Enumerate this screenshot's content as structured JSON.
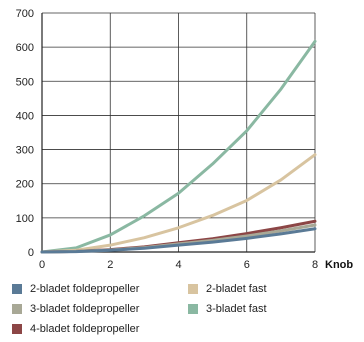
{
  "chart_data": {
    "type": "line",
    "title": "",
    "xlabel": "Knob",
    "ylabel": "",
    "xlim": [
      0,
      8
    ],
    "ylim": [
      0,
      700
    ],
    "x_ticks": [
      "0",
      "2",
      "4",
      "6",
      "8"
    ],
    "y_ticks": [
      "0",
      "100",
      "200",
      "300",
      "400",
      "500",
      "600",
      "700"
    ],
    "grid": true,
    "legend_position": "bottom",
    "x": [
      0,
      1,
      2,
      3,
      4,
      5,
      6,
      7,
      8
    ],
    "series": [
      {
        "name": "2-bladet foldepropeller",
        "color": "#5a7a96",
        "values": [
          0,
          1,
          5,
          11,
          20,
          29,
          40,
          53,
          68
        ]
      },
      {
        "name": "3-bladet foldepropeller",
        "color": "#a8a896",
        "values": [
          0,
          2,
          6,
          13,
          24,
          34,
          47,
          62,
          79
        ]
      },
      {
        "name": "4-bladet foldepropeller",
        "color": "#8c4646",
        "values": [
          0,
          2,
          7,
          15,
          27,
          39,
          54,
          71,
          90
        ]
      },
      {
        "name": "2-bladet fast",
        "color": "#d8c4a0",
        "values": [
          0,
          5,
          20,
          42,
          71,
          107,
          151,
          211,
          285
        ]
      },
      {
        "name": "3-bladet fast",
        "color": "#8ab8a2",
        "values": [
          0,
          12,
          50,
          106,
          172,
          258,
          355,
          477,
          617
        ]
      }
    ]
  }
}
